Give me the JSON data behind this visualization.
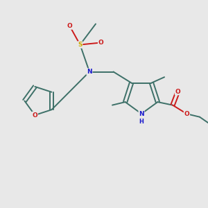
{
  "bg_color": "#e8e8e8",
  "bond_color": "#3d7068",
  "N_color": "#1a1acc",
  "O_color": "#cc1a1a",
  "S_color": "#ccaa00",
  "font_size_atom": 6.5,
  "figsize": [
    3.0,
    3.0
  ],
  "dpi": 100,
  "xlim": [
    0,
    10
  ],
  "ylim": [
    0,
    10
  ]
}
